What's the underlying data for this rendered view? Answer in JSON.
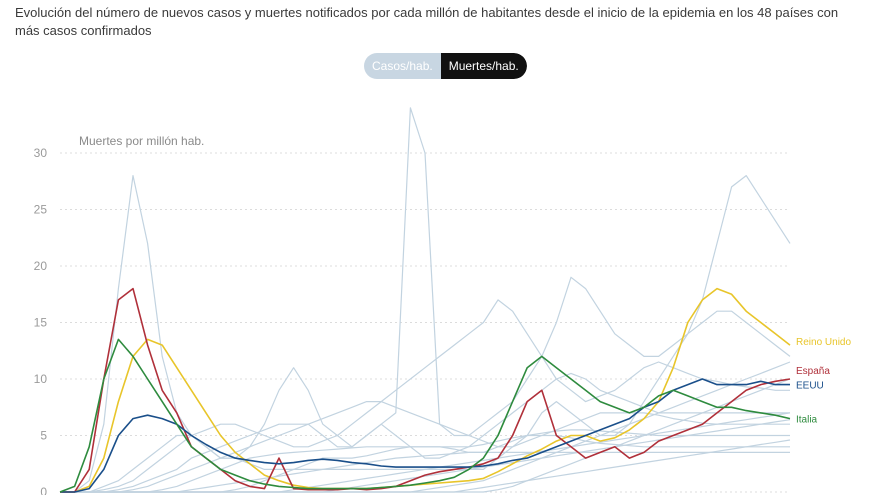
{
  "header": {
    "subtitle": "Evolución del número de nuevos casos y muertes notificados por cada millón de habitantes desde el inicio de la epidemia en los 48 países con más casos confirmados"
  },
  "toggle": {
    "cases_label": "Casos/hab.",
    "deaths_label": "Muertes/hab.",
    "active": "Muertes/hab."
  },
  "colors": {
    "background_lines": "#c2d3e0",
    "grid": "#dcdcdc",
    "Reino Unido": "#e8c52a",
    "España": "#b0303a",
    "EEUU": "#1a4f8a",
    "Italia": "#2e8b3e"
  },
  "chart_data": {
    "type": "line",
    "ylabel": "Muertes por millón hab.",
    "ylim": [
      0,
      30
    ],
    "yticks": [
      0,
      5,
      10,
      15,
      20,
      25,
      30
    ],
    "grid": true,
    "x": [
      0,
      2,
      4,
      6,
      8,
      10,
      12,
      14,
      16,
      18,
      20,
      22,
      24,
      26,
      28,
      30,
      32,
      34,
      36,
      38,
      40,
      42,
      44,
      46,
      48,
      50,
      52,
      54,
      56,
      58,
      60,
      62,
      64,
      66,
      68,
      70,
      72,
      74,
      76,
      78,
      80,
      82,
      84,
      86,
      88,
      90,
      92,
      94,
      96,
      98,
      100
    ],
    "series": [
      {
        "name": "Reino Unido",
        "label": "Reino Unido",
        "highlight": true,
        "values": [
          0,
          0,
          0.5,
          3,
          8,
          12,
          13.5,
          13,
          11,
          9,
          7,
          5,
          3.5,
          2.5,
          1.5,
          1,
          0.6,
          0.4,
          0.3,
          0.3,
          0.3,
          0.3,
          0.4,
          0.5,
          0.6,
          0.7,
          0.8,
          0.9,
          1,
          1.2,
          1.8,
          2.5,
          3.2,
          3.8,
          4.5,
          5,
          5,
          4.5,
          4.8,
          5.5,
          6.5,
          8,
          11,
          15,
          17,
          18,
          17.5,
          16,
          15,
          14,
          13
        ]
      },
      {
        "name": "España",
        "label": "España",
        "highlight": true,
        "values": [
          0,
          0,
          2,
          10,
          17,
          18,
          13,
          9,
          7,
          4,
          3,
          2,
          1,
          0.5,
          0.3,
          3,
          0.3,
          0.2,
          0.2,
          0.2,
          0.3,
          0.2,
          0.3,
          0.5,
          1,
          1.5,
          1.8,
          2,
          2.2,
          2.5,
          3,
          5,
          8,
          9,
          5,
          4,
          3,
          3.5,
          4,
          3,
          3.5,
          4.5,
          5,
          5.5,
          6,
          7,
          8,
          9,
          9.5,
          9.8,
          10
        ]
      },
      {
        "name": "EEUU",
        "label": "EEUU",
        "highlight": true,
        "values": [
          0,
          0,
          0.3,
          2,
          5,
          6.5,
          6.8,
          6.5,
          6,
          5,
          4.2,
          3.5,
          3,
          2.8,
          2.6,
          2.5,
          2.6,
          2.8,
          2.9,
          2.8,
          2.6,
          2.5,
          2.3,
          2.2,
          2.2,
          2.2,
          2.2,
          2.2,
          2.2,
          2.3,
          2.5,
          2.8,
          3,
          3.5,
          4,
          4.5,
          5,
          5.5,
          6,
          6.5,
          7.5,
          8,
          9,
          9.5,
          10,
          9.5,
          9.5,
          9.5,
          9.8,
          9.5,
          9.5
        ]
      },
      {
        "name": "Italia",
        "label": "Italia",
        "highlight": true,
        "values": [
          0,
          0.5,
          4,
          10,
          13.5,
          12,
          10,
          8,
          6,
          4,
          3,
          2,
          1.5,
          1,
          0.7,
          0.5,
          0.4,
          0.3,
          0.3,
          0.3,
          0.3,
          0.3,
          0.4,
          0.5,
          0.6,
          0.8,
          1,
          1.3,
          2,
          3,
          5,
          8,
          11,
          12,
          11,
          10,
          9,
          8,
          7.5,
          7,
          7.5,
          8.5,
          9,
          8.5,
          8,
          7.5,
          7.5,
          7.2,
          7,
          6.8,
          6.5
        ]
      },
      {
        "values": [
          0,
          0,
          1,
          6,
          18,
          28,
          22,
          12,
          7,
          5,
          4,
          3,
          3,
          2.5,
          2,
          2,
          2,
          2,
          2,
          2,
          2,
          2,
          2,
          2,
          2,
          2,
          2,
          2,
          2,
          2,
          3,
          4,
          5,
          7,
          8,
          7,
          6,
          5,
          5,
          6,
          8,
          10,
          12,
          14,
          17,
          22,
          27,
          28,
          26,
          24,
          22
        ]
      },
      {
        "values": [
          0,
          0,
          0,
          0.5,
          1,
          2,
          3,
          4,
          5,
          5,
          4,
          3,
          3,
          4,
          6,
          9,
          11,
          9,
          6,
          5,
          4,
          5,
          6,
          7,
          34,
          30,
          6,
          5,
          5,
          6,
          7,
          8,
          10,
          12,
          15,
          19,
          18,
          16,
          14,
          13,
          12,
          12,
          13,
          14,
          15,
          16,
          16,
          15,
          14,
          13,
          12
        ]
      },
      {
        "values": [
          0,
          0,
          0,
          0.2,
          0.5,
          1,
          2,
          3,
          4,
          5,
          5.5,
          6,
          6,
          5.5,
          5,
          4.5,
          4,
          4,
          4.5,
          5,
          6,
          7,
          8,
          9,
          10,
          11,
          12,
          13,
          14,
          15,
          17,
          16,
          14,
          12,
          10,
          9,
          8,
          8.5,
          9,
          10,
          11,
          11.5,
          11,
          10.5,
          10,
          9.8,
          9.5,
          9.3,
          9.2,
          9,
          9
        ]
      },
      {
        "values": [
          0,
          0,
          0,
          0,
          0.2,
          0.5,
          1,
          1.5,
          2,
          3,
          3.5,
          4,
          4.5,
          5,
          5.5,
          6,
          6,
          6,
          5,
          4,
          4,
          5,
          6,
          5,
          4,
          3,
          3,
          3.5,
          4,
          5,
          6,
          7,
          8,
          9,
          10,
          10.5,
          10,
          9,
          8.5,
          8,
          7.5,
          7,
          7,
          7,
          7,
          7,
          7,
          7,
          7,
          7,
          7
        ]
      },
      {
        "values": [
          0,
          0,
          0,
          0,
          0,
          0.2,
          0.5,
          1,
          1.5,
          2,
          2.5,
          3,
          3.5,
          4,
          4.5,
          5,
          5.5,
          6,
          6.5,
          7,
          7.5,
          8,
          8,
          7.5,
          7,
          6.5,
          6,
          5.5,
          5,
          4.5,
          4,
          4,
          4.5,
          5,
          5.5,
          6,
          6.5,
          7,
          7,
          7,
          7,
          6.8,
          6.5,
          6.3,
          6.1,
          6,
          6,
          6,
          6,
          6,
          6
        ]
      },
      {
        "values": [
          0,
          0,
          0,
          0,
          0,
          0,
          0,
          0.2,
          0.5,
          1,
          1.5,
          2,
          2.5,
          3,
          3.2,
          3.4,
          3.5,
          3.6,
          3.7,
          3.8,
          3.9,
          4,
          4,
          4,
          4,
          4,
          4,
          4,
          4,
          4.2,
          4.5,
          4.8,
          5,
          5.2,
          5.4,
          5.5,
          5.5,
          5.4,
          5.3,
          5.2,
          5.1,
          5,
          5,
          5,
          5,
          5,
          5,
          5,
          5,
          5,
          5
        ]
      },
      {
        "values": [
          0,
          0,
          0,
          0,
          0,
          0,
          0,
          0,
          0,
          0,
          0,
          0,
          0.2,
          0.5,
          1,
          1.5,
          2,
          2.5,
          3,
          3,
          3,
          3.2,
          3.5,
          3.8,
          4,
          4,
          4,
          3.8,
          3.5,
          3.5,
          4,
          4.5,
          5,
          5,
          5,
          4.8,
          4.5,
          4.3,
          4.2,
          4.1,
          4,
          4,
          4,
          4,
          4,
          4,
          4,
          4,
          4,
          4,
          4
        ]
      },
      {
        "values": [
          0,
          0,
          0,
          0,
          0,
          0,
          0,
          0,
          0,
          0.2,
          0.4,
          0.6,
          0.8,
          1,
          1.2,
          1.4,
          1.6,
          1.8,
          2,
          2.2,
          2.4,
          2.6,
          2.8,
          3,
          3.1,
          3.2,
          3.3,
          3.4,
          3.5,
          3.5,
          3.5,
          3.5,
          3.5,
          3.5,
          3.5,
          3.5,
          3.5,
          3.5,
          3.5,
          3.5,
          3.5,
          3.5,
          3.5,
          3.5,
          3.5,
          3.5,
          3.5,
          3.5,
          3.5,
          3.5,
          3.5
        ]
      },
      {
        "values": [
          0,
          0,
          0,
          0,
          0,
          0,
          0,
          0,
          0,
          0,
          0,
          0,
          0,
          0,
          0,
          0,
          0.2,
          0.4,
          0.6,
          0.8,
          1,
          1.2,
          1.4,
          1.6,
          1.8,
          2,
          2.2,
          2.4,
          2.6,
          2.8,
          3,
          3.2,
          3.4,
          3.6,
          3.8,
          4,
          4.2,
          4.4,
          4.6,
          4.8,
          5,
          5.2,
          5.4,
          5.6,
          5.8,
          6,
          6.2,
          6.4,
          6.6,
          6.8,
          7
        ]
      },
      {
        "values": [
          0,
          0,
          0,
          0,
          0,
          0,
          0,
          0,
          0,
          0,
          0,
          0,
          0,
          0,
          0,
          0,
          0,
          0,
          0,
          0,
          0,
          0,
          0,
          0,
          0,
          0.2,
          0.4,
          0.6,
          0.8,
          1,
          1.5,
          2,
          2.5,
          3,
          3.5,
          4,
          4.5,
          5,
          5.5,
          6,
          6.5,
          7,
          7.5,
          8,
          8.5,
          9,
          9.5,
          10,
          10.5,
          11,
          11.5
        ]
      },
      {
        "values": [
          0,
          0,
          0,
          0,
          0,
          0,
          0,
          0,
          0,
          0,
          0,
          0,
          0,
          0,
          0,
          0,
          0,
          0,
          0,
          0,
          0,
          0,
          0,
          0,
          0,
          0,
          0,
          0,
          0,
          0,
          0.2,
          0.5,
          1,
          1.5,
          2,
          2.5,
          3,
          3.5,
          4,
          4.5,
          5,
          5.5,
          6,
          6.5,
          7,
          7.5,
          8,
          8.5,
          9,
          9.5,
          10
        ]
      },
      {
        "values": [
          0,
          0,
          0,
          0,
          0,
          0,
          0,
          0,
          0,
          0,
          0,
          0,
          0,
          0,
          0,
          0,
          0,
          0,
          0,
          0,
          0,
          0,
          0,
          0,
          0,
          0,
          0,
          0,
          0.2,
          0.4,
          0.6,
          0.8,
          1,
          1.2,
          1.4,
          1.6,
          1.8,
          2,
          2.2,
          2.4,
          2.6,
          2.8,
          3,
          3.2,
          3.4,
          3.6,
          3.8,
          4,
          4.2,
          4.4,
          4.6
        ]
      },
      {
        "values": [
          0,
          0,
          0,
          0,
          0,
          0,
          0,
          0,
          0,
          0,
          0,
          0,
          0,
          0,
          0,
          0,
          0,
          0,
          0,
          0.2,
          0.4,
          0.6,
          0.8,
          1,
          1.2,
          1.4,
          1.6,
          1.8,
          2,
          2.2,
          2.4,
          2.6,
          2.8,
          3,
          3.2,
          3.4,
          3.6,
          3.8,
          4,
          4.2,
          4.4,
          4.6,
          4.8,
          5,
          5.2,
          5.4,
          5.6,
          5.8,
          6,
          6.2,
          6.4
        ]
      }
    ]
  }
}
